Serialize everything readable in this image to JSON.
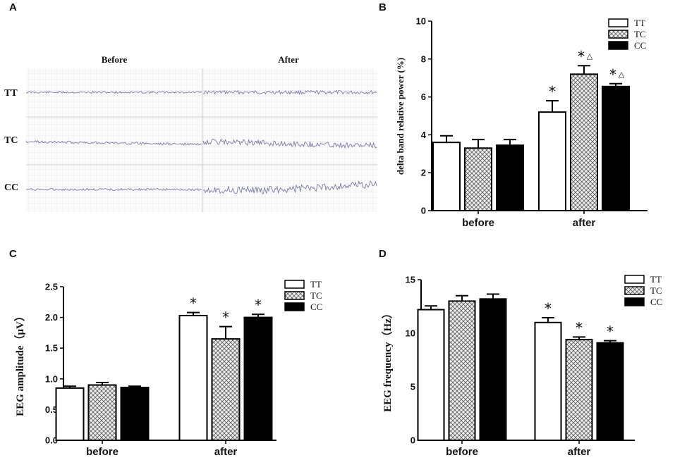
{
  "panels": {
    "A": {
      "letter": "A"
    },
    "B": {
      "letter": "B"
    },
    "C": {
      "letter": "C"
    },
    "D": {
      "letter": "D"
    }
  },
  "eeg": {
    "col_before": "Before",
    "col_after": "After",
    "rows": [
      "TT",
      "TC",
      "CC"
    ]
  },
  "legend": [
    "TT",
    "TC",
    "CC"
  ],
  "colors": {
    "TT": "#ffffff",
    "TC": "#c8c8c8",
    "CC": "#000000",
    "trace": "#7a7aa8",
    "grid": "#dcdcdc"
  },
  "chart_data": [
    {
      "id": "B",
      "type": "bar",
      "ylabel": "delta band relative power (%)",
      "ylim": [
        0,
        10
      ],
      "yticks": [
        "0",
        "2",
        "4",
        "6",
        "8",
        "10"
      ],
      "categories": [
        "before",
        "after"
      ],
      "series": [
        {
          "name": "TT",
          "values": [
            3.6,
            5.2
          ],
          "errors": [
            0.35,
            0.6
          ]
        },
        {
          "name": "TC",
          "values": [
            3.3,
            7.2
          ],
          "errors": [
            0.45,
            0.45
          ]
        },
        {
          "name": "CC",
          "values": [
            3.45,
            6.55
          ],
          "errors": [
            0.3,
            0.15
          ]
        }
      ],
      "annotations": [
        {
          "category": "after",
          "series": "TT",
          "text": "*"
        },
        {
          "category": "after",
          "series": "TC",
          "text": "*",
          "extra": "△"
        },
        {
          "category": "after",
          "series": "CC",
          "text": "*",
          "extra": "△"
        }
      ],
      "legend_position": "top-right"
    },
    {
      "id": "C",
      "type": "bar",
      "ylabel": "EEG amplitude（μV）",
      "ylim": [
        0,
        2.5
      ],
      "yticks": [
        "0.0",
        "0.5",
        "1.0",
        "1.5",
        "2.0",
        "2.5"
      ],
      "categories": [
        "before",
        "after"
      ],
      "series": [
        {
          "name": "TT",
          "values": [
            0.85,
            2.03
          ],
          "errors": [
            0.03,
            0.05
          ]
        },
        {
          "name": "TC",
          "values": [
            0.9,
            1.65
          ],
          "errors": [
            0.04,
            0.2
          ]
        },
        {
          "name": "CC",
          "values": [
            0.86,
            2.0
          ],
          "errors": [
            0.02,
            0.05
          ]
        }
      ],
      "annotations": [
        {
          "category": "after",
          "series": "TT",
          "text": "*"
        },
        {
          "category": "after",
          "series": "TC",
          "text": "*"
        },
        {
          "category": "after",
          "series": "CC",
          "text": "*"
        }
      ],
      "legend_position": "top-right"
    },
    {
      "id": "D",
      "type": "bar",
      "ylabel": "EEG frequency（Hz）",
      "ylim": [
        0,
        15
      ],
      "yticks": [
        "0",
        "5",
        "10",
        "15"
      ],
      "categories": [
        "before",
        "after"
      ],
      "series": [
        {
          "name": "TT",
          "values": [
            12.2,
            11.0
          ],
          "errors": [
            0.35,
            0.45
          ]
        },
        {
          "name": "TC",
          "values": [
            13.0,
            9.4
          ],
          "errors": [
            0.5,
            0.25
          ]
        },
        {
          "name": "CC",
          "values": [
            13.2,
            9.1
          ],
          "errors": [
            0.45,
            0.2
          ]
        }
      ],
      "annotations": [
        {
          "category": "after",
          "series": "TT",
          "text": "*"
        },
        {
          "category": "after",
          "series": "TC",
          "text": "*"
        },
        {
          "category": "after",
          "series": "CC",
          "text": "*"
        }
      ],
      "legend_position": "top-right"
    }
  ]
}
